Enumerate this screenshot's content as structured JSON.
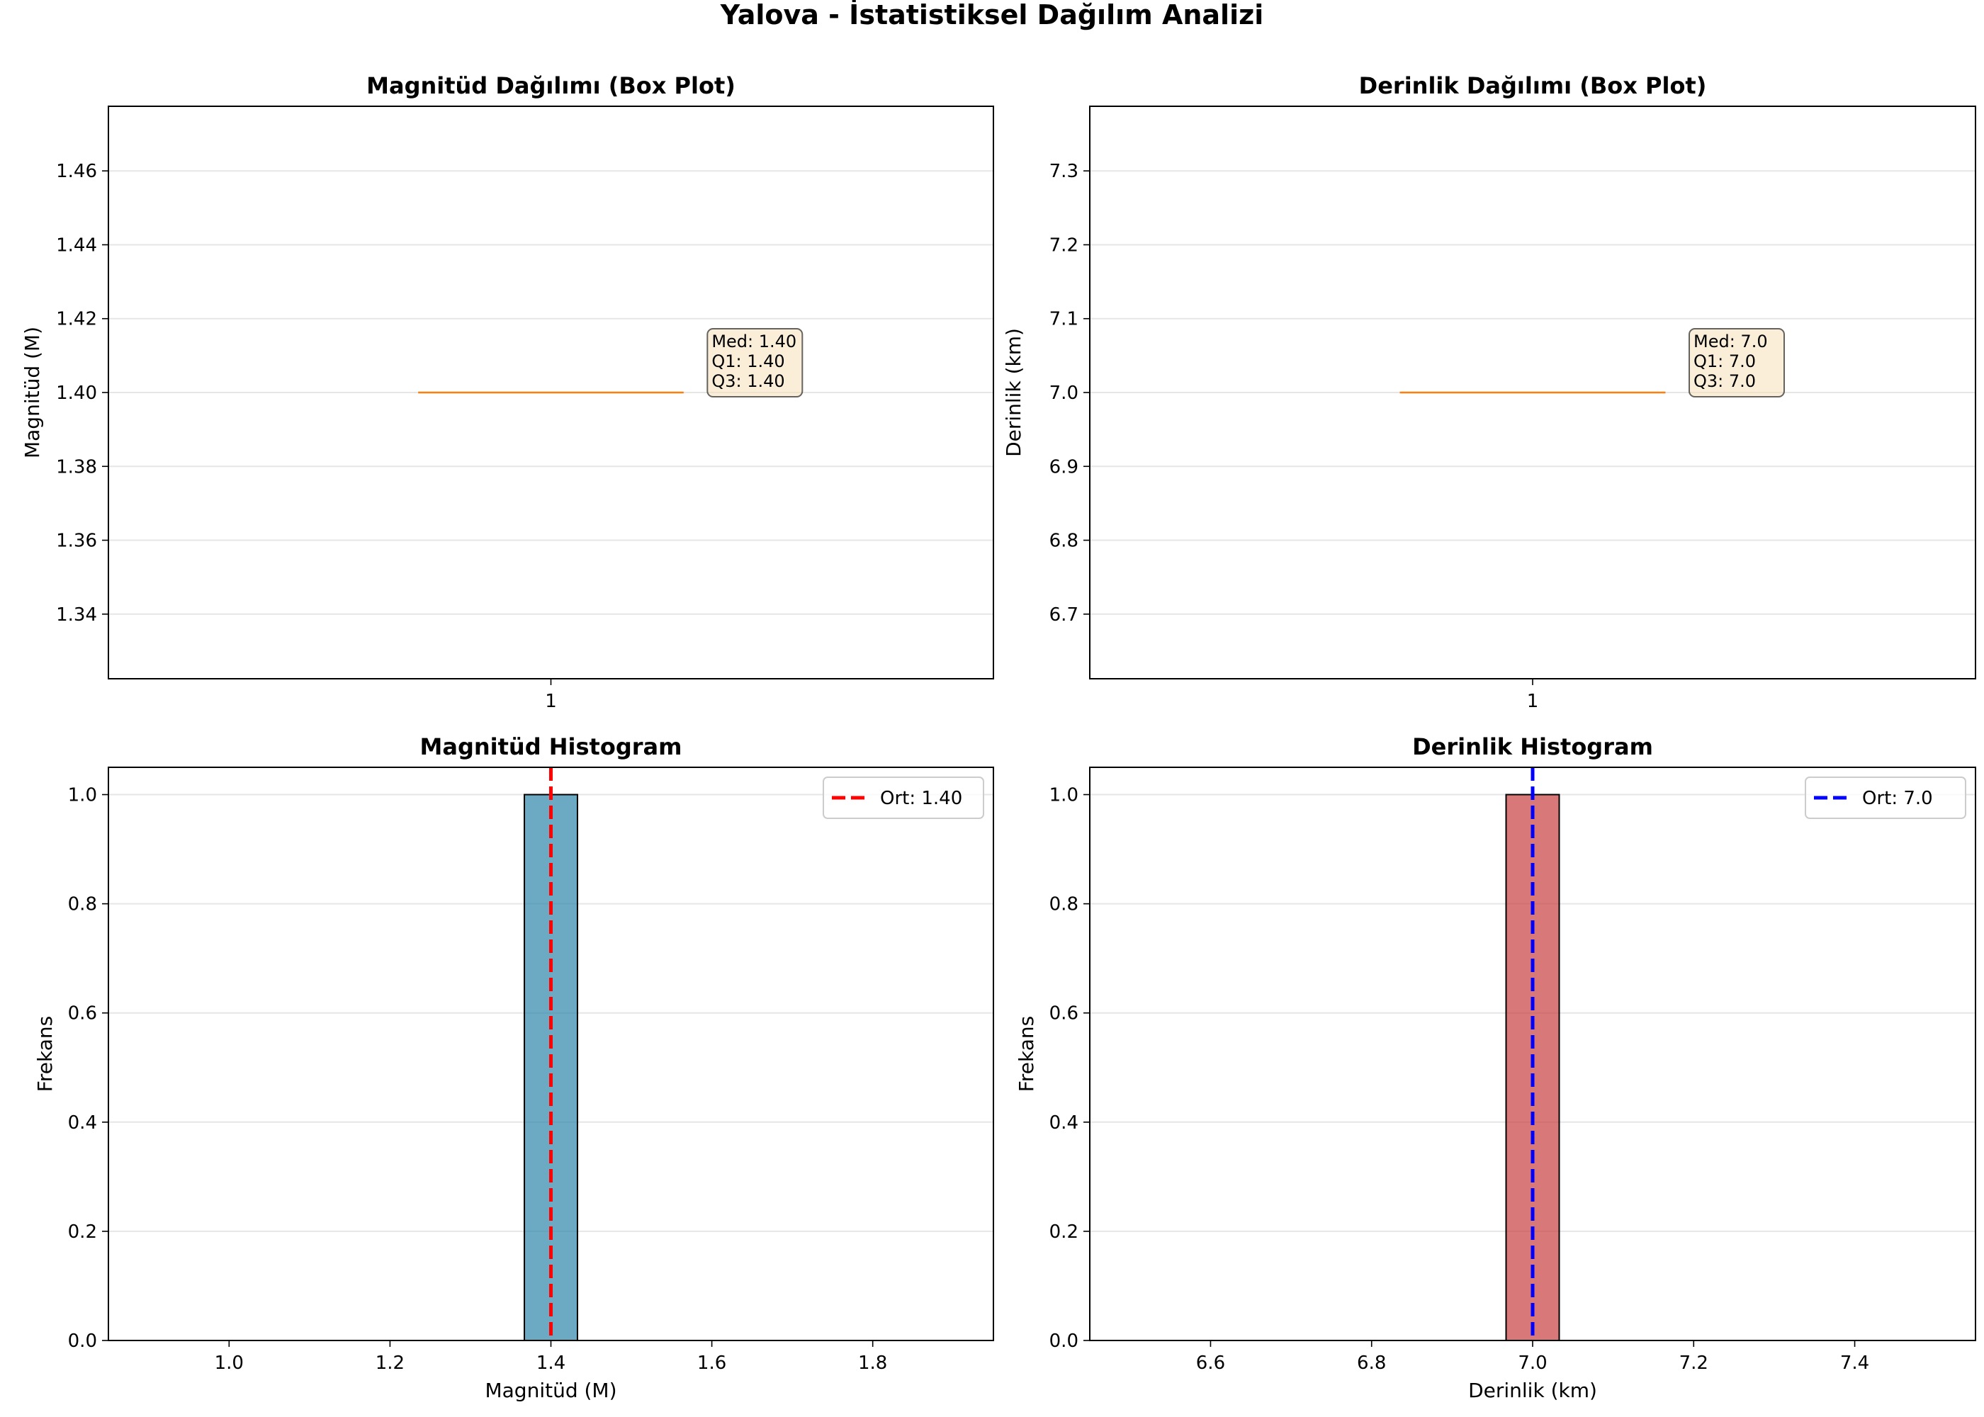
{
  "figure": {
    "title": "Yalova - İstatistiksel Dağılım Analizi"
  },
  "chart_data": [
    {
      "type": "box",
      "title": "Magnitüd Dağılımı (Box Plot)",
      "xlabel": "",
      "ylabel": "Magnitüd (M)",
      "categories": [
        "1"
      ],
      "ylim": [
        1.3225,
        1.4775
      ],
      "yticks": [
        "1.34",
        "1.36",
        "1.38",
        "1.40",
        "1.42",
        "1.44",
        "1.46"
      ],
      "ytick_values": [
        1.34,
        1.36,
        1.38,
        1.4,
        1.42,
        1.44,
        1.46
      ],
      "grid": true,
      "box": {
        "median": 1.4,
        "q1": 1.4,
        "q3": 1.4,
        "whisker_low": 1.4,
        "whisker_high": 1.4
      },
      "annotation": [
        "Med: 1.40",
        "Q1: 1.40",
        "Q3: 1.40"
      ],
      "median_color": "#ff7f0e"
    },
    {
      "type": "box",
      "title": "Derinlik Dağılımı (Box Plot)",
      "xlabel": "",
      "ylabel": "Derinlik (km)",
      "categories": [
        "1"
      ],
      "ylim": [
        6.6125,
        7.3875
      ],
      "yticks": [
        "6.7",
        "6.8",
        "6.9",
        "7.0",
        "7.1",
        "7.2",
        "7.3"
      ],
      "ytick_values": [
        6.7,
        6.8,
        6.9,
        7.0,
        7.1,
        7.2,
        7.3
      ],
      "grid": true,
      "box": {
        "median": 7.0,
        "q1": 7.0,
        "q3": 7.0,
        "whisker_low": 7.0,
        "whisker_high": 7.0
      },
      "annotation": [
        "Med: 7.0",
        "Q1: 7.0",
        "Q3: 7.0"
      ],
      "median_color": "#ff7f0e"
    },
    {
      "type": "bar",
      "title": "Magnitüd Histogram",
      "xlabel": "Magnitüd (M)",
      "ylabel": "Frekans",
      "xlim": [
        0.85,
        1.95
      ],
      "ylim": [
        0,
        1.05
      ],
      "xticks": [
        "1.0",
        "1.2",
        "1.4",
        "1.6",
        "1.8"
      ],
      "xtick_values": [
        1.0,
        1.2,
        1.4,
        1.6,
        1.8
      ],
      "yticks": [
        "0.0",
        "0.2",
        "0.4",
        "0.6",
        "0.8",
        "1.0"
      ],
      "ytick_values": [
        0.0,
        0.2,
        0.4,
        0.6,
        0.8,
        1.0
      ],
      "grid": true,
      "bins": [
        {
          "start": 1.367,
          "end": 1.433,
          "count": 1
        }
      ],
      "bar_color": "#2e86ab",
      "mean_line": {
        "value": 1.4,
        "label": "Ort: 1.40",
        "color": "#ff0000"
      },
      "legend": "top-right"
    },
    {
      "type": "bar",
      "title": "Derinlik Histogram",
      "xlabel": "Derinlik (km)",
      "ylabel": "Frekans",
      "xlim": [
        6.45,
        7.55
      ],
      "ylim": [
        0,
        1.05
      ],
      "xticks": [
        "6.6",
        "6.8",
        "7.0",
        "7.2",
        "7.4"
      ],
      "xtick_values": [
        6.6,
        6.8,
        7.0,
        7.2,
        7.4
      ],
      "yticks": [
        "0.0",
        "0.2",
        "0.4",
        "0.6",
        "0.8",
        "1.0"
      ],
      "ytick_values": [
        0.0,
        0.2,
        0.4,
        0.6,
        0.8,
        1.0
      ],
      "grid": true,
      "bins": [
        {
          "start": 6.967,
          "end": 7.033,
          "count": 1
        }
      ],
      "bar_color": "#c73e3e",
      "mean_line": {
        "value": 7.0,
        "label": "Ort: 7.0",
        "color": "#0000ff"
      },
      "legend": "top-right"
    }
  ]
}
